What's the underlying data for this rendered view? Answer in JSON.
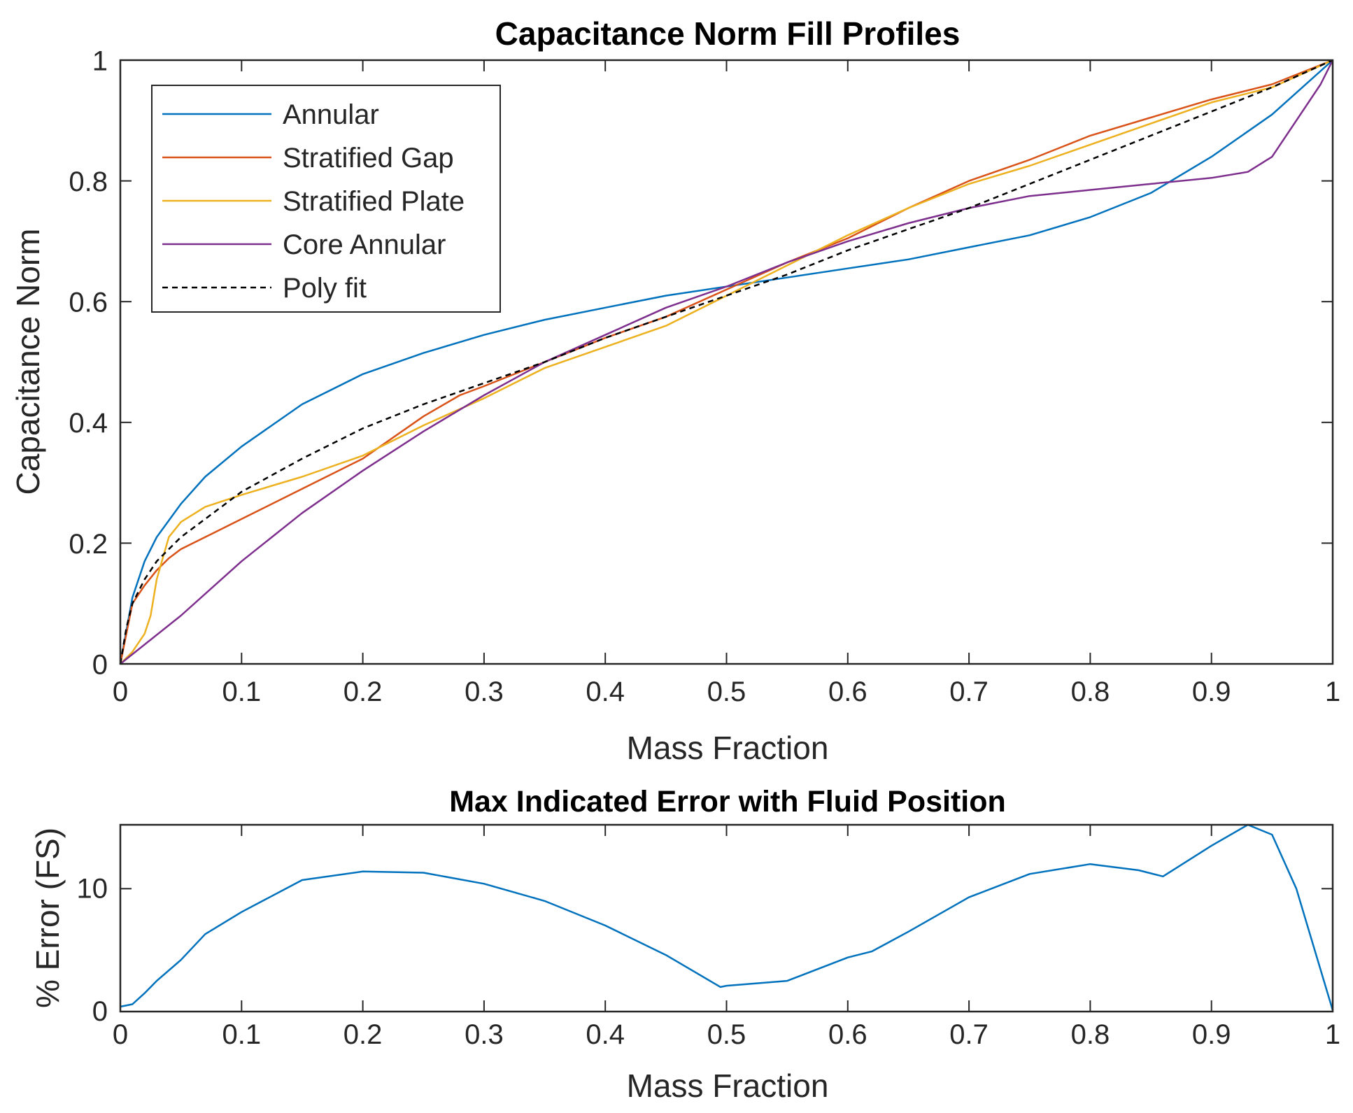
{
  "colors": {
    "annular": "#0072BD",
    "stratified_gap": "#D95319",
    "stratified_plate": "#EDB120",
    "core_annular": "#7E2F8E",
    "poly_fit": "#000000",
    "axis": "#262626"
  },
  "chart_data": [
    {
      "id": "top",
      "type": "line",
      "title": "Capacitance Norm Fill Profiles",
      "xlabel": "Mass Fraction",
      "ylabel": "Capacitance Norm",
      "xlim": [
        0,
        1
      ],
      "ylim": [
        0,
        1
      ],
      "grid": false,
      "legend_position": "top-left",
      "xticks": [
        0,
        0.1,
        0.2,
        0.3,
        0.4,
        0.5,
        0.6,
        0.7,
        0.8,
        0.9,
        1
      ],
      "xtick_labels": [
        "0",
        "0.1",
        "0.2",
        "0.3",
        "0.4",
        "0.5",
        "0.6",
        "0.7",
        "0.8",
        "0.9",
        "1"
      ],
      "yticks": [
        0,
        0.2,
        0.4,
        0.6,
        0.8,
        1
      ],
      "ytick_labels": [
        "0",
        "0.2",
        "0.4",
        "0.6",
        "0.8",
        "1"
      ],
      "series": [
        {
          "name": "Annular",
          "color": "#0072BD",
          "dash": "",
          "x": [
            0,
            0.01,
            0.02,
            0.03,
            0.05,
            0.07,
            0.1,
            0.15,
            0.2,
            0.25,
            0.3,
            0.35,
            0.4,
            0.45,
            0.5,
            0.55,
            0.6,
            0.65,
            0.7,
            0.75,
            0.8,
            0.85,
            0.9,
            0.95,
            1
          ],
          "y": [
            0,
            0.11,
            0.17,
            0.21,
            0.265,
            0.31,
            0.36,
            0.43,
            0.48,
            0.515,
            0.545,
            0.57,
            0.59,
            0.61,
            0.625,
            0.64,
            0.655,
            0.67,
            0.69,
            0.71,
            0.74,
            0.78,
            0.84,
            0.91,
            1
          ]
        },
        {
          "name": "Stratified Gap",
          "color": "#D95319",
          "dash": "",
          "x": [
            0,
            0.01,
            0.02,
            0.03,
            0.04,
            0.05,
            0.07,
            0.1,
            0.15,
            0.2,
            0.25,
            0.28,
            0.3,
            0.35,
            0.4,
            0.45,
            0.5,
            0.55,
            0.6,
            0.65,
            0.7,
            0.75,
            0.8,
            0.85,
            0.9,
            0.95,
            1
          ],
          "y": [
            0,
            0.1,
            0.13,
            0.155,
            0.175,
            0.19,
            0.21,
            0.24,
            0.29,
            0.34,
            0.41,
            0.445,
            0.46,
            0.5,
            0.54,
            0.575,
            0.62,
            0.665,
            0.705,
            0.755,
            0.8,
            0.835,
            0.875,
            0.905,
            0.935,
            0.96,
            1
          ]
        },
        {
          "name": "Stratified Plate",
          "color": "#EDB120",
          "dash": "",
          "x": [
            0,
            0.01,
            0.02,
            0.025,
            0.03,
            0.04,
            0.05,
            0.07,
            0.1,
            0.15,
            0.2,
            0.25,
            0.3,
            0.35,
            0.4,
            0.45,
            0.5,
            0.55,
            0.6,
            0.65,
            0.7,
            0.75,
            0.8,
            0.85,
            0.9,
            0.95,
            1
          ],
          "y": [
            0,
            0.02,
            0.05,
            0.08,
            0.14,
            0.21,
            0.235,
            0.26,
            0.28,
            0.31,
            0.345,
            0.395,
            0.44,
            0.49,
            0.525,
            0.56,
            0.61,
            0.66,
            0.71,
            0.755,
            0.795,
            0.825,
            0.86,
            0.895,
            0.93,
            0.955,
            1
          ]
        },
        {
          "name": "Core Annular",
          "color": "#7E2F8E",
          "dash": "",
          "x": [
            0,
            0.05,
            0.1,
            0.15,
            0.2,
            0.25,
            0.3,
            0.35,
            0.4,
            0.45,
            0.5,
            0.55,
            0.6,
            0.65,
            0.7,
            0.75,
            0.8,
            0.85,
            0.9,
            0.93,
            0.95,
            0.97,
            0.99,
            1
          ],
          "y": [
            0,
            0.08,
            0.17,
            0.25,
            0.32,
            0.385,
            0.445,
            0.5,
            0.545,
            0.59,
            0.625,
            0.665,
            0.7,
            0.73,
            0.755,
            0.775,
            0.785,
            0.795,
            0.805,
            0.815,
            0.84,
            0.9,
            0.96,
            1
          ]
        },
        {
          "name": "Poly fit",
          "color": "#000000",
          "dash": "8,6",
          "x": [
            0,
            0.005,
            0.01,
            0.02,
            0.03,
            0.05,
            0.07,
            0.1,
            0.15,
            0.2,
            0.25,
            0.3,
            0.35,
            0.4,
            0.45,
            0.5,
            0.55,
            0.6,
            0.65,
            0.7,
            0.75,
            0.8,
            0.85,
            0.9,
            0.95,
            1
          ],
          "y": [
            0,
            0.06,
            0.1,
            0.14,
            0.17,
            0.21,
            0.24,
            0.285,
            0.34,
            0.39,
            0.43,
            0.465,
            0.5,
            0.54,
            0.575,
            0.61,
            0.645,
            0.685,
            0.72,
            0.755,
            0.795,
            0.835,
            0.875,
            0.915,
            0.955,
            1
          ]
        }
      ]
    },
    {
      "id": "bottom",
      "type": "line",
      "title": "Max Indicated Error with Fluid Position",
      "xlabel": "Mass Fraction",
      "ylabel": "% Error (FS)",
      "xlim": [
        0,
        1
      ],
      "ylim": [
        0,
        15.2
      ],
      "grid": false,
      "xticks": [
        0,
        0.1,
        0.2,
        0.3,
        0.4,
        0.5,
        0.6,
        0.7,
        0.8,
        0.9,
        1
      ],
      "xtick_labels": [
        "0",
        "0.1",
        "0.2",
        "0.3",
        "0.4",
        "0.5",
        "0.6",
        "0.7",
        "0.8",
        "0.9",
        "1"
      ],
      "yticks": [
        0,
        10
      ],
      "ytick_labels": [
        "0",
        "10"
      ],
      "series": [
        {
          "name": "Max Indicated Error",
          "color": "#0072BD",
          "dash": "",
          "x": [
            0,
            0.01,
            0.02,
            0.03,
            0.05,
            0.07,
            0.1,
            0.15,
            0.2,
            0.25,
            0.3,
            0.35,
            0.4,
            0.45,
            0.495,
            0.5,
            0.55,
            0.6,
            0.62,
            0.65,
            0.7,
            0.75,
            0.8,
            0.84,
            0.86,
            0.9,
            0.93,
            0.95,
            0.97,
            1
          ],
          "y": [
            0.4,
            0.6,
            1.5,
            2.5,
            4.2,
            6.3,
            8.1,
            10.7,
            11.4,
            11.3,
            10.4,
            9.0,
            7.0,
            4.6,
            2.0,
            2.1,
            2.5,
            4.4,
            4.9,
            6.5,
            9.3,
            11.2,
            12.0,
            11.5,
            11.0,
            13.5,
            15.2,
            14.4,
            10.0,
            0.1
          ]
        }
      ]
    }
  ]
}
